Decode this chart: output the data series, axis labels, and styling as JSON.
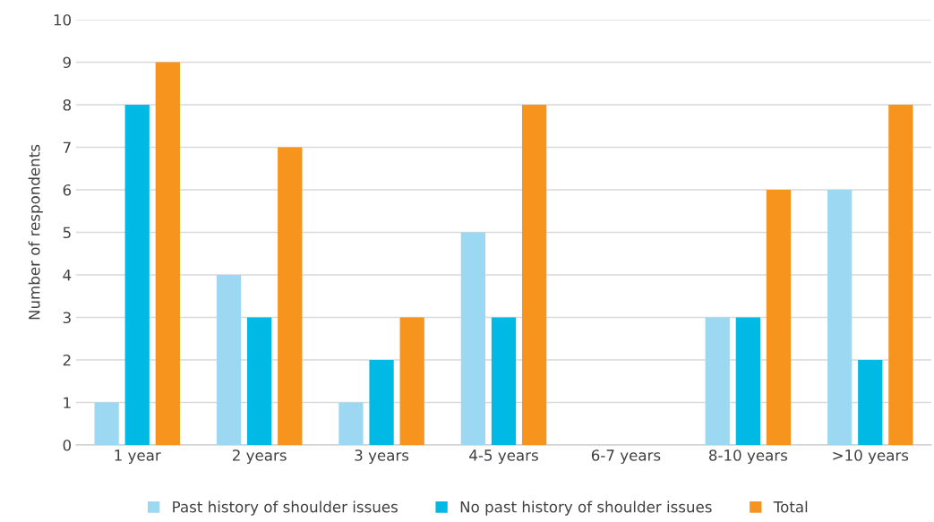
{
  "chart_data": {
    "type": "bar",
    "ylabel": "Number of respondents",
    "categories": [
      "1 year",
      "2 years",
      "3 years",
      "4-5 years",
      "6-7 years",
      "8-10 years",
      ">10 years"
    ],
    "series": [
      {
        "name": "Past history of shoulder issues",
        "color": "#9dd8f2",
        "values": [
          1,
          4,
          1,
          5,
          0,
          3,
          6
        ]
      },
      {
        "name": "No past history of shoulder issues",
        "color": "#00b9e4",
        "values": [
          8,
          3,
          2,
          3,
          0,
          3,
          2
        ]
      },
      {
        "name": "Total",
        "color": "#f7941d",
        "values": [
          9,
          7,
          3,
          8,
          0,
          6,
          8
        ]
      }
    ],
    "ylim": [
      0,
      10
    ],
    "yticks": [
      0,
      1,
      2,
      3,
      4,
      5,
      6,
      7,
      8,
      9,
      10
    ],
    "grid": "y",
    "legend": "bottom"
  }
}
